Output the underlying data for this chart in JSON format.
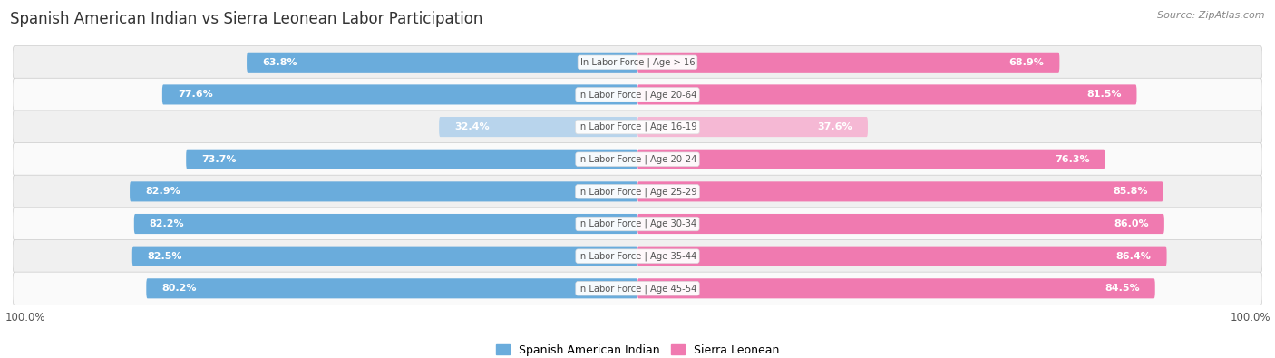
{
  "title": "Spanish American Indian vs Sierra Leonean Labor Participation",
  "source": "Source: ZipAtlas.com",
  "categories": [
    "In Labor Force | Age > 16",
    "In Labor Force | Age 20-64",
    "In Labor Force | Age 16-19",
    "In Labor Force | Age 20-24",
    "In Labor Force | Age 25-29",
    "In Labor Force | Age 30-34",
    "In Labor Force | Age 35-44",
    "In Labor Force | Age 45-54"
  ],
  "spanish_values": [
    63.8,
    77.6,
    32.4,
    73.7,
    82.9,
    82.2,
    82.5,
    80.2
  ],
  "sierra_values": [
    68.9,
    81.5,
    37.6,
    76.3,
    85.8,
    86.0,
    86.4,
    84.5
  ],
  "spanish_color": "#6aacdc",
  "spanish_color_light": "#b8d4ec",
  "sierra_color": "#f07ab0",
  "sierra_color_light": "#f5b8d4",
  "bar_height": 0.62,
  "background_color": "#ffffff",
  "row_bg_odd": "#f0f0f0",
  "row_bg_even": "#fafafa",
  "label_fontsize": 8.0,
  "title_fontsize": 12,
  "legend_labels": [
    "Spanish American Indian",
    "Sierra Leonean"
  ],
  "x_max": 100.0,
  "center_label_color": "#555555",
  "value_label_color_dark": "#555555",
  "value_label_color_white": "#ffffff"
}
